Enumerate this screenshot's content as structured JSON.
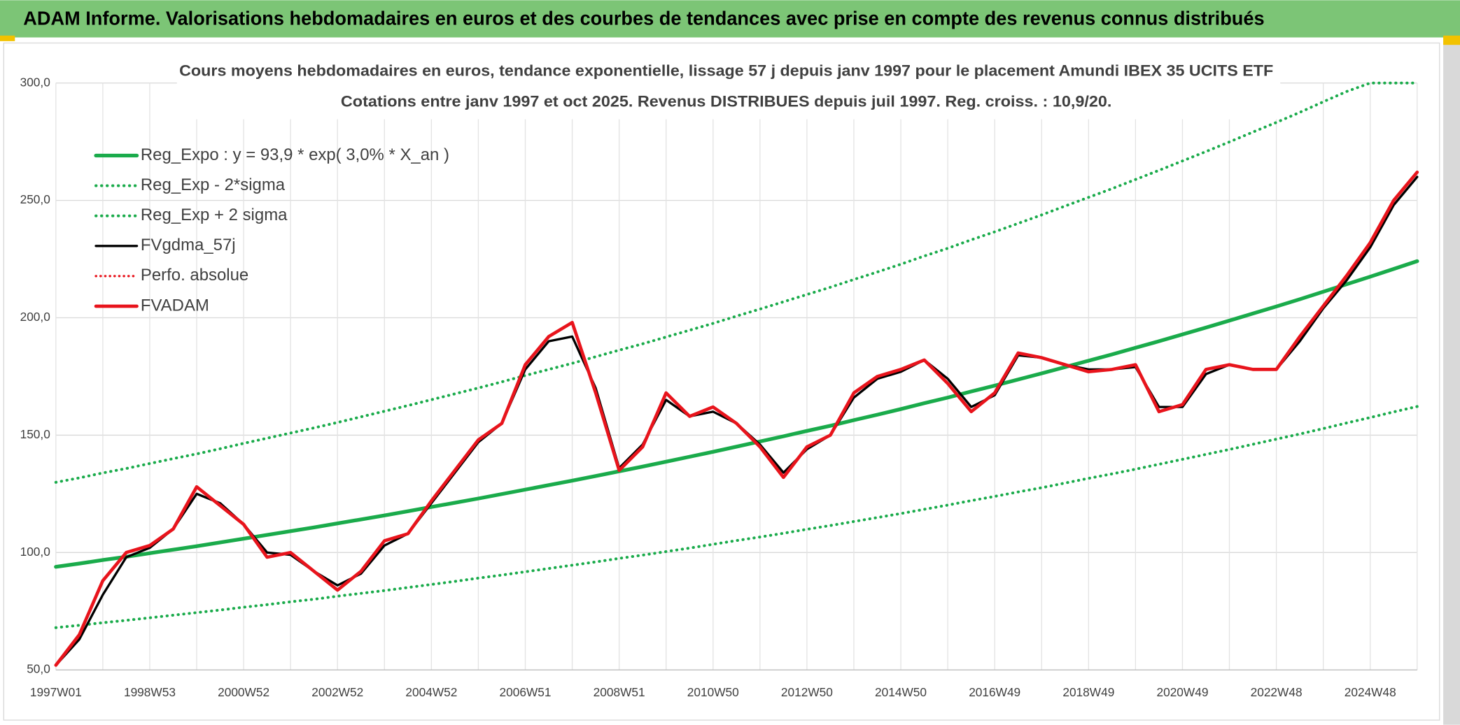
{
  "header": {
    "title": "ADAM Informe. Valorisations hebdomadaires en euros et des courbes de tendances avec prise en compte des revenus connus distribués"
  },
  "chart_data": {
    "type": "line",
    "title": "Cours moyens hebdomadaires en euros, tendance exponentielle, lissage 57 j depuis janv 1997 pour le placement Amundi IBEX 35 UCITS ETF",
    "subtitle": "Cotations entre janv 1997 et oct 2025. Revenus DISTRIBUES depuis juil 1997. Reg. croiss. : 10,9/20.",
    "categories": [
      "1997W01",
      null,
      null,
      null,
      "1998W53",
      null,
      null,
      null,
      "2000W52",
      null,
      null,
      null,
      "2002W52",
      null,
      null,
      null,
      "2004W52",
      null,
      null,
      null,
      "2006W51",
      null,
      null,
      null,
      "2008W51",
      null,
      null,
      null,
      "2010W50",
      null,
      null,
      null,
      "2012W50",
      null,
      null,
      null,
      "2014W50",
      null,
      null,
      null,
      "2016W49",
      null,
      null,
      null,
      "2018W49",
      null,
      null,
      null,
      "2020W49",
      null,
      null,
      null,
      "2022W48",
      null,
      null,
      null,
      "2024W48",
      null,
      null
    ],
    "ylim": [
      50,
      300
    ],
    "yticks": [
      {
        "value": 50,
        "label": "50,0"
      },
      {
        "value": 100,
        "label": "100,0"
      },
      {
        "value": 150,
        "label": "150,0"
      },
      {
        "value": 200,
        "label": "200,0"
      },
      {
        "value": 250,
        "label": "250,0"
      },
      {
        "value": 300,
        "label": "300,0"
      }
    ],
    "grid": true,
    "legend": "top-left",
    "series": [
      {
        "name": "Reg_Expo : y = 93,9 * exp( 3,0% *  X_an )",
        "color": "#1aab4b",
        "style": "solid",
        "width": 4,
        "values": [
          93.9,
          95.3,
          96.8,
          98.2,
          99.7,
          101.2,
          102.7,
          104.3,
          105.9,
          107.5,
          109.1,
          110.7,
          112.4,
          114.1,
          115.8,
          117.6,
          119.4,
          121.2,
          123.0,
          124.9,
          126.8,
          128.7,
          130.6,
          132.6,
          134.6,
          136.6,
          138.7,
          140.8,
          142.9,
          145.1,
          147.3,
          149.5,
          151.8,
          154.0,
          156.4,
          158.7,
          161.1,
          163.6,
          166.0,
          168.6,
          171.1,
          173.7,
          176.3,
          179.0,
          181.7,
          184.4,
          187.2,
          190.0,
          192.9,
          195.8,
          198.8,
          201.8,
          204.8,
          207.9,
          211.1,
          214.3,
          217.5,
          220.8,
          224.1
        ]
      },
      {
        "name": "Reg_Exp - 2*sigma",
        "color": "#1aab4b",
        "style": "dotted",
        "width": 3,
        "values": [
          68.0,
          69.0,
          70.1,
          71.1,
          72.2,
          73.3,
          74.4,
          75.5,
          76.7,
          77.8,
          79.0,
          80.1,
          81.4,
          82.6,
          83.8,
          85.1,
          86.4,
          87.7,
          89.1,
          90.4,
          91.8,
          93.2,
          94.6,
          96.0,
          97.5,
          98.9,
          100.4,
          101.9,
          103.5,
          105.1,
          106.6,
          108.2,
          109.9,
          111.5,
          113.2,
          114.9,
          116.6,
          118.4,
          120.2,
          122.1,
          123.9,
          125.8,
          127.6,
          129.6,
          131.6,
          133.5,
          135.5,
          137.6,
          139.7,
          141.8,
          143.9,
          146.1,
          148.3,
          150.5,
          152.8,
          155.2,
          157.5,
          159.9,
          162.2
        ]
      },
      {
        "name": "Reg_Exp + 2 sigma",
        "color": "#1aab4b",
        "style": "dotted",
        "width": 3,
        "values": [
          129.9,
          131.8,
          133.9,
          135.8,
          137.9,
          140.0,
          142.0,
          144.2,
          146.5,
          148.7,
          150.9,
          153.1,
          155.4,
          157.8,
          160.2,
          162.6,
          165.1,
          167.6,
          170.1,
          172.7,
          175.4,
          178.0,
          180.6,
          183.4,
          186.2,
          188.9,
          191.8,
          194.7,
          197.6,
          200.7,
          203.7,
          206.8,
          209.9,
          213.0,
          216.3,
          219.5,
          222.8,
          226.3,
          229.6,
          233.2,
          236.6,
          240.2,
          243.8,
          247.6,
          251.3,
          255.0,
          258.9,
          262.8,
          266.8,
          270.8,
          274.9,
          279.1,
          283.2,
          287.5,
          292.0,
          296.4,
          300,
          300,
          300
        ]
      },
      {
        "name": "FVgdma_57j",
        "color": "#000000",
        "style": "solid",
        "width": 2.5,
        "values": [
          52,
          63,
          82,
          98,
          102,
          110,
          125,
          121,
          112,
          100,
          99,
          92,
          86,
          91,
          103,
          108,
          121,
          134,
          147,
          155,
          178,
          190,
          192,
          170,
          136,
          146,
          165,
          158,
          160,
          155,
          146,
          134,
          144,
          150,
          166,
          174,
          177,
          182,
          174,
          162,
          167,
          184,
          183,
          180,
          178,
          178,
          179,
          162,
          162,
          176,
          180,
          178,
          178,
          190,
          204,
          216,
          230,
          248,
          260
        ]
      },
      {
        "name": "Perfo. absolue",
        "color": "#e8141c",
        "style": "dotted",
        "width": 2.5
      },
      {
        "name": "FVADAM",
        "color": "#e8141c",
        "style": "solid",
        "width": 3.5,
        "values": [
          52,
          65,
          88,
          100,
          103,
          110,
          128,
          120,
          112,
          98,
          100,
          92,
          84,
          92,
          105,
          108,
          122,
          135,
          148,
          155,
          180,
          192,
          198,
          168,
          135,
          145,
          168,
          158,
          162,
          155,
          145,
          132,
          145,
          150,
          168,
          175,
          178,
          182,
          172,
          160,
          168,
          185,
          183,
          180,
          177,
          178,
          180,
          160,
          163,
          178,
          180,
          178,
          178,
          192,
          205,
          218,
          232,
          250,
          262
        ]
      }
    ]
  }
}
